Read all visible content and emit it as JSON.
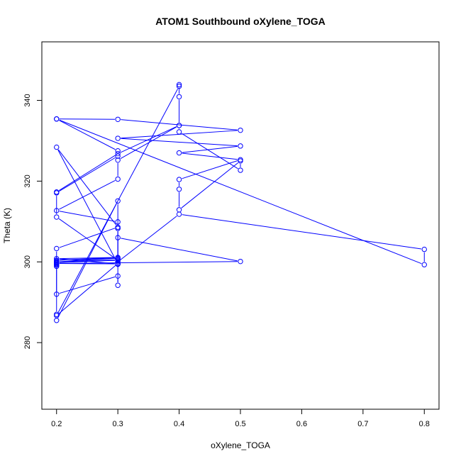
{
  "chart_data": {
    "type": "line",
    "title": "ATOM1 Southbound oXylene_TOGA",
    "xlabel": "oXylene_TOGA",
    "ylabel": "Theta (K)",
    "xlim": [
      0.176,
      0.824
    ],
    "ylim": [
      263.5,
      354.5
    ],
    "x_ticks": [
      0.2,
      0.3,
      0.4,
      0.5,
      0.6,
      0.7,
      0.8
    ],
    "x_tick_labels": [
      "0.2",
      "0.3",
      "0.4",
      "0.5",
      "0.6",
      "0.7",
      "0.8"
    ],
    "y_ticks": [
      280,
      300,
      320,
      340
    ],
    "y_tick_labels": [
      "280",
      "300",
      "320",
      "340"
    ],
    "grid": false,
    "marker": "open-circle",
    "colors": {
      "series": "#0000ff",
      "axis": "#000000",
      "background": "#ffffff"
    },
    "series": [
      {
        "x": [
          0.2,
          0.3,
          0.5,
          0.3,
          0.5,
          0.4,
          0.5,
          0.4,
          0.4,
          0.4,
          0.5,
          0.5,
          0.4,
          0.4,
          0.3,
          0.3,
          0.2,
          0.3,
          0.3,
          0.3,
          0.3,
          0.4,
          0.8,
          0.8,
          0.2,
          0.3,
          0.3,
          0.2,
          0.2,
          0.3,
          0.2,
          0.2,
          0.2,
          0.2,
          0.3,
          0.3,
          0.3,
          0.5,
          0.2,
          0.3,
          0.2,
          0.3,
          0.2,
          0.3,
          0.2,
          0.3,
          0.3,
          0.3,
          0.2,
          0.3,
          0.2,
          0.2,
          0.2,
          0.2,
          0.2,
          0.3,
          0.3,
          0.3,
          0.2,
          0.4,
          0.4,
          0.4,
          0.4,
          0.3,
          0.2
        ],
        "y": [
          335.4,
          335.3,
          332.6,
          330.6,
          328.7,
          327.0,
          325.3,
          320.4,
          318.0,
          312.9,
          325.0,
          322.7,
          332.2,
          333.8,
          325.2,
          320.5,
          312.7,
          309.9,
          308.3,
          300.8,
          300.0,
          311.8,
          303.1,
          299.3,
          335.4,
          327.5,
          326.2,
          317.1,
          311.1,
          300.4,
          299.8,
          299.2,
          298.9,
          292.0,
          296.5,
          294.2,
          306.0,
          300.1,
          299.6,
          299.5,
          300.8,
          301.1,
          300.4,
          300.9,
          300.0,
          300.5,
          299.4,
          299.5,
          328.4,
          308.6,
          303.3,
          300.2,
          299.4,
          287.0,
          285.5,
          315.1,
          308.3,
          299.6,
          286.7,
          343.5,
          343.9,
          340.9,
          333.8,
          326.8,
          317.3
        ]
      }
    ]
  }
}
